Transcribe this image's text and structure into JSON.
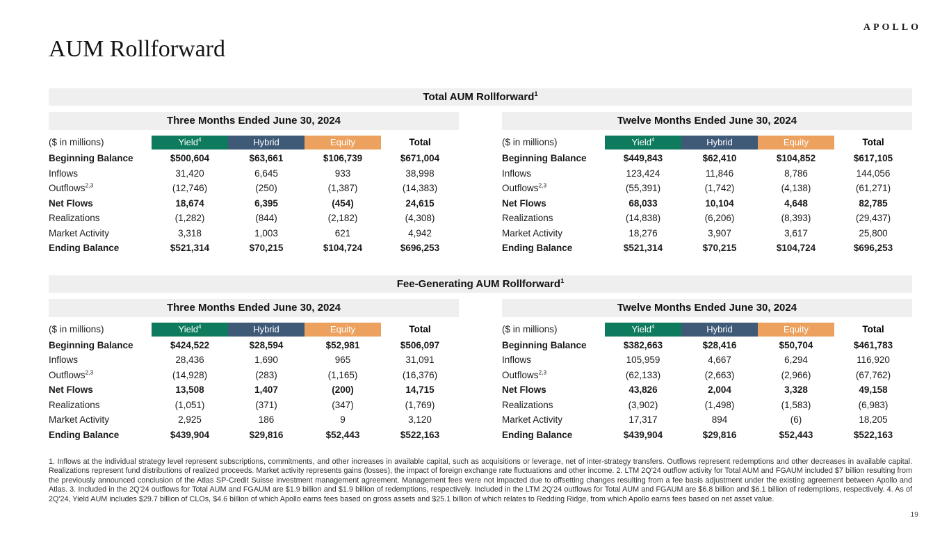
{
  "page": {
    "brand": "APOLLO",
    "title": "AUM Rollforward",
    "page_number": "19"
  },
  "colors": {
    "yield": "#0E7B5E",
    "hybrid": "#3F5A77",
    "equity": "#EDA15F",
    "band_bg": "#EFEFEF"
  },
  "columns": {
    "units_label": "($ in millions)",
    "segments": [
      "Yield",
      "Hybrid",
      "Equity"
    ],
    "yield_sup": "4",
    "total": "Total"
  },
  "tables": [
    {
      "title": "Total AUM Rollforward",
      "title_sup": "1",
      "periods": [
        {
          "heading": "Three Months Ended June 30, 2024",
          "rows": [
            {
              "label": "Beginning Balance",
              "sup": "",
              "bold": true,
              "values": [
                "$500,604",
                "$63,661",
                "$106,739",
                "$671,004"
              ]
            },
            {
              "label": "Inflows",
              "sup": "",
              "bold": false,
              "values": [
                "31,420",
                "6,645",
                "933",
                "38,998"
              ]
            },
            {
              "label": "Outflows",
              "sup": "2,3",
              "bold": false,
              "values": [
                "(12,746)",
                "(250)",
                "(1,387)",
                "(14,383)"
              ]
            },
            {
              "label": "Net Flows",
              "sup": "",
              "bold": true,
              "values": [
                "18,674",
                "6,395",
                "(454)",
                "24,615"
              ]
            },
            {
              "label": "Realizations",
              "sup": "",
              "bold": false,
              "values": [
                "(1,282)",
                "(844)",
                "(2,182)",
                "(4,308)"
              ]
            },
            {
              "label": "Market Activity",
              "sup": "",
              "bold": false,
              "values": [
                "3,318",
                "1,003",
                "621",
                "4,942"
              ]
            },
            {
              "label": "Ending Balance",
              "sup": "",
              "bold": true,
              "values": [
                "$521,314",
                "$70,215",
                "$104,724",
                "$696,253"
              ]
            }
          ]
        },
        {
          "heading": "Twelve Months Ended June 30, 2024",
          "rows": [
            {
              "label": "Beginning Balance",
              "sup": "",
              "bold": true,
              "values": [
                "$449,843",
                "$62,410",
                "$104,852",
                "$617,105"
              ]
            },
            {
              "label": "Inflows",
              "sup": "",
              "bold": false,
              "values": [
                "123,424",
                "11,846",
                "8,786",
                "144,056"
              ]
            },
            {
              "label": "Outflows",
              "sup": "2,3",
              "bold": false,
              "values": [
                "(55,391)",
                "(1,742)",
                "(4,138)",
                "(61,271)"
              ]
            },
            {
              "label": "Net Flows",
              "sup": "",
              "bold": true,
              "values": [
                "68,033",
                "10,104",
                "4,648",
                "82,785"
              ]
            },
            {
              "label": "Realizations",
              "sup": "",
              "bold": false,
              "values": [
                "(14,838)",
                "(6,206)",
                "(8,393)",
                "(29,437)"
              ]
            },
            {
              "label": "Market Activity",
              "sup": "",
              "bold": false,
              "values": [
                "18,276",
                "3,907",
                "3,617",
                "25,800"
              ]
            },
            {
              "label": "Ending Balance",
              "sup": "",
              "bold": true,
              "values": [
                "$521,314",
                "$70,215",
                "$104,724",
                "$696,253"
              ]
            }
          ]
        }
      ]
    },
    {
      "title": "Fee-Generating AUM Rollforward",
      "title_sup": "1",
      "periods": [
        {
          "heading": "Three Months Ended June 30, 2024",
          "rows": [
            {
              "label": "Beginning Balance",
              "sup": "",
              "bold": true,
              "values": [
                "$424,522",
                "$28,594",
                "$52,981",
                "$506,097"
              ]
            },
            {
              "label": "Inflows",
              "sup": "",
              "bold": false,
              "values": [
                "28,436",
                "1,690",
                "965",
                "31,091"
              ]
            },
            {
              "label": "Outflows",
              "sup": "2,3",
              "bold": false,
              "values": [
                "(14,928)",
                "(283)",
                "(1,165)",
                "(16,376)"
              ]
            },
            {
              "label": "Net Flows",
              "sup": "",
              "bold": true,
              "values": [
                "13,508",
                "1,407",
                "(200)",
                "14,715"
              ]
            },
            {
              "label": "Realizations",
              "sup": "",
              "bold": false,
              "values": [
                "(1,051)",
                "(371)",
                "(347)",
                "(1,769)"
              ]
            },
            {
              "label": "Market Activity",
              "sup": "",
              "bold": false,
              "values": [
                "2,925",
                "186",
                "9",
                "3,120"
              ]
            },
            {
              "label": "Ending Balance",
              "sup": "",
              "bold": true,
              "values": [
                "$439,904",
                "$29,816",
                "$52,443",
                "$522,163"
              ]
            }
          ]
        },
        {
          "heading": "Twelve Months Ended June 30, 2024",
          "rows": [
            {
              "label": "Beginning Balance",
              "sup": "",
              "bold": true,
              "values": [
                "$382,663",
                "$28,416",
                "$50,704",
                "$461,783"
              ]
            },
            {
              "label": "Inflows",
              "sup": "",
              "bold": false,
              "values": [
                "105,959",
                "4,667",
                "6,294",
                "116,920"
              ]
            },
            {
              "label": "Outflows",
              "sup": "2,3",
              "bold": false,
              "values": [
                "(62,133)",
                "(2,663)",
                "(2,966)",
                "(67,762)"
              ]
            },
            {
              "label": "Net Flows",
              "sup": "",
              "bold": true,
              "values": [
                "43,826",
                "2,004",
                "3,328",
                "49,158"
              ]
            },
            {
              "label": "Realizations",
              "sup": "",
              "bold": false,
              "values": [
                "(3,902)",
                "(1,498)",
                "(1,583)",
                "(6,983)"
              ]
            },
            {
              "label": "Market Activity",
              "sup": "",
              "bold": false,
              "values": [
                "17,317",
                "894",
                "(6)",
                "18,205"
              ]
            },
            {
              "label": "Ending Balance",
              "sup": "",
              "bold": true,
              "values": [
                "$439,904",
                "$29,816",
                "$52,443",
                "$522,163"
              ]
            }
          ]
        }
      ]
    }
  ],
  "footnotes": {
    "text": "1. Inflows at the individual strategy level represent subscriptions, commitments, and other increases in available capital, such as acquisitions or leverage, net of inter-strategy transfers. Outflows represent redemptions and other decreases in available capital. Realizations represent fund distributions of realized proceeds. Market activity represents gains (losses), the impact of foreign exchange rate fluctuations and other income. 2. LTM 2Q'24 outflow activity for Total AUM and FGAUM included $7 billion resulting from the previously announced conclusion of the Atlas SP-Credit Suisse investment management agreement. Management fees were not impacted due to offsetting changes resulting from a fee basis adjustment under the existing agreement between Apollo and Atlas. 3. Included in the 2Q'24 outflows for Total AUM and FGAUM are $1.9 billion and $1.9 billion of redemptions, respectively. Included in the LTM 2Q'24 outflows for Total AUM and FGAUM are $6.8 billion and $6.1 billion of redemptions, respectively. 4. As of 2Q'24, Yield AUM includes $29.7 billion of CLOs, $4.6 billion of which Apollo earns fees based on gross assets and $25.1 billion of which relates to Redding Ridge, from which Apollo earns fees based on net asset value."
  }
}
